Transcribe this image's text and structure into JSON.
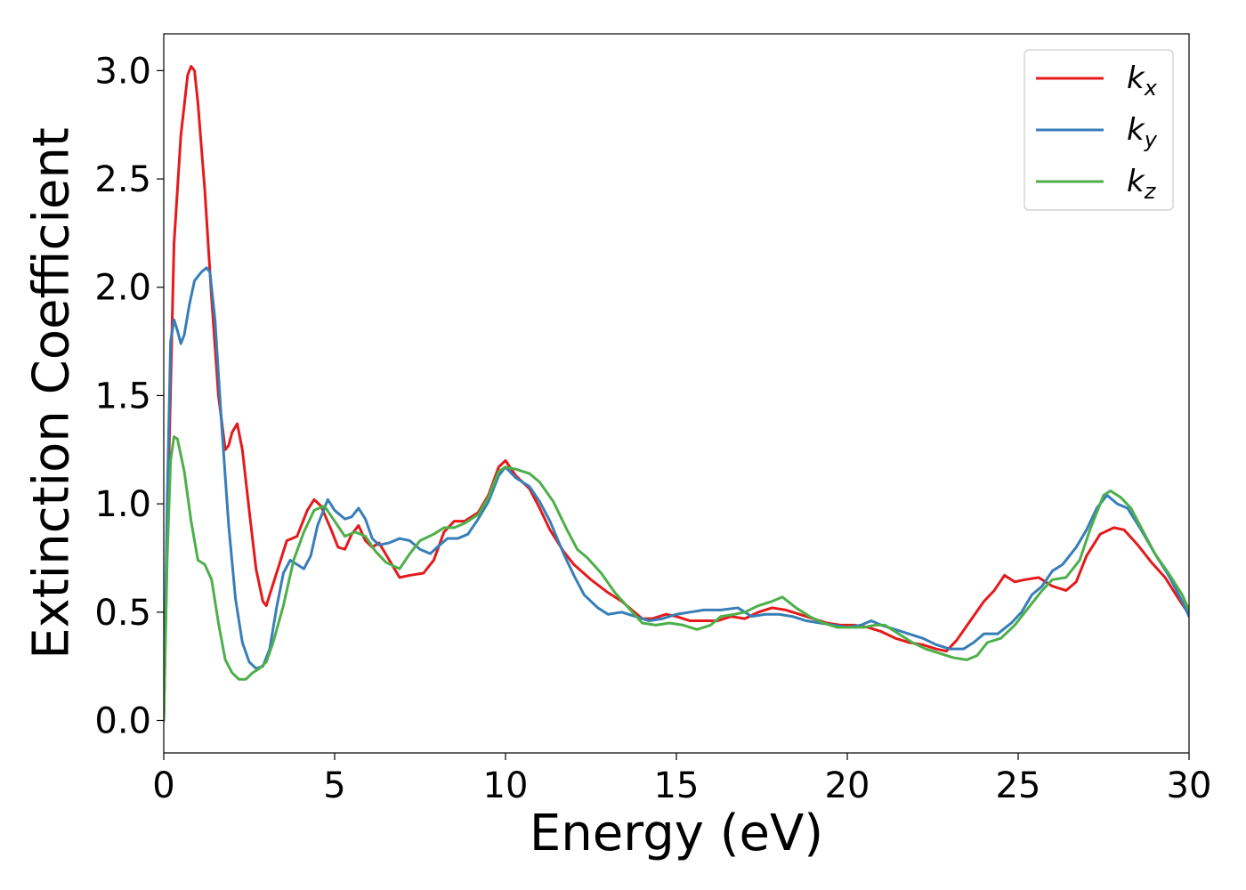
{
  "chart_data": {
    "type": "line",
    "title": "",
    "xlabel": "Energy (eV)",
    "ylabel": "Extinction Coefficient",
    "xlim": [
      0,
      30
    ],
    "ylim": [
      -0.15,
      3.17
    ],
    "xticks": [
      "0",
      "5",
      "10",
      "15",
      "20",
      "25",
      "30"
    ],
    "yticks": [
      "0.0",
      "0.5",
      "1.0",
      "1.5",
      "2.0",
      "2.5",
      "3.0"
    ],
    "grid": false,
    "legend_position": "top-right",
    "series": [
      {
        "name": "k",
        "subscript": "x",
        "color": "#e41a1c",
        "points": [
          [
            0,
            0
          ],
          [
            0.15,
            1.2
          ],
          [
            0.3,
            2.2
          ],
          [
            0.5,
            2.7
          ],
          [
            0.7,
            2.98
          ],
          [
            0.8,
            3.02
          ],
          [
            0.9,
            3.0
          ],
          [
            1.0,
            2.85
          ],
          [
            1.2,
            2.45
          ],
          [
            1.4,
            1.95
          ],
          [
            1.6,
            1.5
          ],
          [
            1.8,
            1.25
          ],
          [
            1.9,
            1.27
          ],
          [
            2.0,
            1.33
          ],
          [
            2.15,
            1.37
          ],
          [
            2.3,
            1.25
          ],
          [
            2.5,
            0.97
          ],
          [
            2.7,
            0.7
          ],
          [
            2.9,
            0.55
          ],
          [
            3.0,
            0.53
          ],
          [
            3.3,
            0.68
          ],
          [
            3.6,
            0.83
          ],
          [
            3.9,
            0.85
          ],
          [
            4.2,
            0.97
          ],
          [
            4.4,
            1.02
          ],
          [
            4.6,
            0.99
          ],
          [
            4.9,
            0.88
          ],
          [
            5.1,
            0.8
          ],
          [
            5.3,
            0.79
          ],
          [
            5.5,
            0.86
          ],
          [
            5.7,
            0.9
          ],
          [
            5.9,
            0.83
          ],
          [
            6.1,
            0.8
          ],
          [
            6.3,
            0.82
          ],
          [
            6.6,
            0.74
          ],
          [
            6.9,
            0.66
          ],
          [
            7.2,
            0.67
          ],
          [
            7.6,
            0.68
          ],
          [
            7.9,
            0.74
          ],
          [
            8.2,
            0.87
          ],
          [
            8.5,
            0.92
          ],
          [
            8.8,
            0.92
          ],
          [
            9.2,
            0.96
          ],
          [
            9.5,
            1.04
          ],
          [
            9.8,
            1.17
          ],
          [
            10.0,
            1.2
          ],
          [
            10.3,
            1.13
          ],
          [
            10.7,
            1.07
          ],
          [
            11.0,
            0.98
          ],
          [
            11.3,
            0.88
          ],
          [
            11.7,
            0.78
          ],
          [
            12.0,
            0.72
          ],
          [
            12.5,
            0.65
          ],
          [
            13.0,
            0.59
          ],
          [
            13.4,
            0.55
          ],
          [
            13.7,
            0.51
          ],
          [
            14.0,
            0.47
          ],
          [
            14.3,
            0.47
          ],
          [
            14.7,
            0.49
          ],
          [
            15.0,
            0.48
          ],
          [
            15.4,
            0.46
          ],
          [
            15.8,
            0.46
          ],
          [
            16.2,
            0.46
          ],
          [
            16.6,
            0.48
          ],
          [
            17.0,
            0.47
          ],
          [
            17.4,
            0.5
          ],
          [
            17.8,
            0.52
          ],
          [
            18.2,
            0.51
          ],
          [
            18.6,
            0.49
          ],
          [
            19.0,
            0.47
          ],
          [
            19.4,
            0.45
          ],
          [
            19.8,
            0.44
          ],
          [
            20.2,
            0.44
          ],
          [
            20.6,
            0.43
          ],
          [
            21.0,
            0.41
          ],
          [
            21.4,
            0.38
          ],
          [
            21.8,
            0.36
          ],
          [
            22.2,
            0.35
          ],
          [
            22.6,
            0.33
          ],
          [
            22.9,
            0.32
          ],
          [
            23.2,
            0.37
          ],
          [
            23.6,
            0.46
          ],
          [
            24.0,
            0.55
          ],
          [
            24.3,
            0.6
          ],
          [
            24.6,
            0.67
          ],
          [
            24.9,
            0.64
          ],
          [
            25.2,
            0.65
          ],
          [
            25.6,
            0.66
          ],
          [
            26.0,
            0.62
          ],
          [
            26.4,
            0.6
          ],
          [
            26.7,
            0.64
          ],
          [
            27.0,
            0.76
          ],
          [
            27.4,
            0.86
          ],
          [
            27.8,
            0.89
          ],
          [
            28.1,
            0.88
          ],
          [
            28.5,
            0.81
          ],
          [
            28.9,
            0.73
          ],
          [
            29.3,
            0.66
          ],
          [
            29.7,
            0.56
          ],
          [
            30.0,
            0.49
          ]
        ]
      },
      {
        "name": "k",
        "subscript": "y",
        "color": "#377eb8",
        "points": [
          [
            0,
            0
          ],
          [
            0.1,
            1.0
          ],
          [
            0.2,
            1.75
          ],
          [
            0.3,
            1.85
          ],
          [
            0.4,
            1.8
          ],
          [
            0.5,
            1.74
          ],
          [
            0.6,
            1.78
          ],
          [
            0.75,
            1.92
          ],
          [
            0.9,
            2.03
          ],
          [
            1.1,
            2.07
          ],
          [
            1.25,
            2.09
          ],
          [
            1.35,
            2.07
          ],
          [
            1.5,
            1.85
          ],
          [
            1.7,
            1.35
          ],
          [
            1.9,
            0.9
          ],
          [
            2.1,
            0.56
          ],
          [
            2.3,
            0.36
          ],
          [
            2.5,
            0.27
          ],
          [
            2.7,
            0.24
          ],
          [
            2.9,
            0.25
          ],
          [
            3.1,
            0.33
          ],
          [
            3.3,
            0.52
          ],
          [
            3.5,
            0.68
          ],
          [
            3.7,
            0.74
          ],
          [
            3.9,
            0.72
          ],
          [
            4.1,
            0.7
          ],
          [
            4.3,
            0.76
          ],
          [
            4.5,
            0.9
          ],
          [
            4.8,
            1.02
          ],
          [
            5.0,
            0.97
          ],
          [
            5.3,
            0.93
          ],
          [
            5.5,
            0.94
          ],
          [
            5.7,
            0.98
          ],
          [
            5.9,
            0.93
          ],
          [
            6.1,
            0.84
          ],
          [
            6.3,
            0.81
          ],
          [
            6.6,
            0.82
          ],
          [
            6.9,
            0.84
          ],
          [
            7.2,
            0.83
          ],
          [
            7.5,
            0.79
          ],
          [
            7.8,
            0.77
          ],
          [
            8.0,
            0.8
          ],
          [
            8.3,
            0.84
          ],
          [
            8.6,
            0.84
          ],
          [
            8.9,
            0.86
          ],
          [
            9.2,
            0.93
          ],
          [
            9.5,
            1.01
          ],
          [
            9.8,
            1.13
          ],
          [
            10.0,
            1.17
          ],
          [
            10.3,
            1.12
          ],
          [
            10.7,
            1.08
          ],
          [
            11.0,
            1.01
          ],
          [
            11.3,
            0.92
          ],
          [
            11.7,
            0.77
          ],
          [
            12.0,
            0.67
          ],
          [
            12.3,
            0.58
          ],
          [
            12.7,
            0.52
          ],
          [
            13.0,
            0.49
          ],
          [
            13.4,
            0.5
          ],
          [
            13.8,
            0.48
          ],
          [
            14.2,
            0.46
          ],
          [
            14.6,
            0.47
          ],
          [
            15.0,
            0.49
          ],
          [
            15.4,
            0.5
          ],
          [
            15.8,
            0.51
          ],
          [
            16.3,
            0.51
          ],
          [
            16.8,
            0.52
          ],
          [
            17.2,
            0.48
          ],
          [
            17.6,
            0.49
          ],
          [
            18.0,
            0.49
          ],
          [
            18.4,
            0.48
          ],
          [
            18.8,
            0.46
          ],
          [
            19.2,
            0.45
          ],
          [
            19.6,
            0.44
          ],
          [
            20.0,
            0.43
          ],
          [
            20.4,
            0.44
          ],
          [
            20.7,
            0.46
          ],
          [
            21.0,
            0.44
          ],
          [
            21.4,
            0.42
          ],
          [
            21.8,
            0.4
          ],
          [
            22.2,
            0.38
          ],
          [
            22.6,
            0.35
          ],
          [
            23.0,
            0.33
          ],
          [
            23.4,
            0.33
          ],
          [
            23.7,
            0.36
          ],
          [
            24.0,
            0.4
          ],
          [
            24.4,
            0.4
          ],
          [
            24.8,
            0.45
          ],
          [
            25.1,
            0.5
          ],
          [
            25.4,
            0.58
          ],
          [
            25.7,
            0.62
          ],
          [
            26.0,
            0.69
          ],
          [
            26.3,
            0.72
          ],
          [
            26.7,
            0.8
          ],
          [
            27.0,
            0.88
          ],
          [
            27.3,
            0.98
          ],
          [
            27.6,
            1.04
          ],
          [
            27.9,
            1.0
          ],
          [
            28.2,
            0.98
          ],
          [
            28.6,
            0.88
          ],
          [
            29.0,
            0.77
          ],
          [
            29.4,
            0.67
          ],
          [
            29.8,
            0.55
          ],
          [
            30.0,
            0.48
          ]
        ]
      },
      {
        "name": "k",
        "subscript": "z",
        "color": "#4daf4a",
        "points": [
          [
            0,
            0
          ],
          [
            0.1,
            0.75
          ],
          [
            0.2,
            1.2
          ],
          [
            0.3,
            1.31
          ],
          [
            0.4,
            1.3
          ],
          [
            0.6,
            1.15
          ],
          [
            0.8,
            0.92
          ],
          [
            1.0,
            0.74
          ],
          [
            1.2,
            0.72
          ],
          [
            1.4,
            0.65
          ],
          [
            1.6,
            0.45
          ],
          [
            1.8,
            0.28
          ],
          [
            2.0,
            0.22
          ],
          [
            2.2,
            0.19
          ],
          [
            2.4,
            0.19
          ],
          [
            2.6,
            0.22
          ],
          [
            2.8,
            0.24
          ],
          [
            3.0,
            0.27
          ],
          [
            3.2,
            0.36
          ],
          [
            3.5,
            0.53
          ],
          [
            3.8,
            0.74
          ],
          [
            4.1,
            0.87
          ],
          [
            4.4,
            0.97
          ],
          [
            4.7,
            0.99
          ],
          [
            5.0,
            0.92
          ],
          [
            5.3,
            0.85
          ],
          [
            5.6,
            0.87
          ],
          [
            5.9,
            0.85
          ],
          [
            6.2,
            0.78
          ],
          [
            6.5,
            0.73
          ],
          [
            6.9,
            0.7
          ],
          [
            7.2,
            0.77
          ],
          [
            7.5,
            0.83
          ],
          [
            7.9,
            0.86
          ],
          [
            8.2,
            0.89
          ],
          [
            8.5,
            0.89
          ],
          [
            8.8,
            0.91
          ],
          [
            9.2,
            0.95
          ],
          [
            9.5,
            1.03
          ],
          [
            9.8,
            1.15
          ],
          [
            10.0,
            1.17
          ],
          [
            10.3,
            1.16
          ],
          [
            10.7,
            1.14
          ],
          [
            11.0,
            1.1
          ],
          [
            11.4,
            1.01
          ],
          [
            11.8,
            0.88
          ],
          [
            12.1,
            0.79
          ],
          [
            12.4,
            0.75
          ],
          [
            12.8,
            0.68
          ],
          [
            13.2,
            0.59
          ],
          [
            13.6,
            0.52
          ],
          [
            14.0,
            0.45
          ],
          [
            14.4,
            0.44
          ],
          [
            14.8,
            0.45
          ],
          [
            15.2,
            0.44
          ],
          [
            15.6,
            0.42
          ],
          [
            16.0,
            0.44
          ],
          [
            16.3,
            0.48
          ],
          [
            16.7,
            0.49
          ],
          [
            17.0,
            0.5
          ],
          [
            17.4,
            0.53
          ],
          [
            17.8,
            0.55
          ],
          [
            18.1,
            0.57
          ],
          [
            18.5,
            0.52
          ],
          [
            18.9,
            0.48
          ],
          [
            19.3,
            0.45
          ],
          [
            19.7,
            0.43
          ],
          [
            20.1,
            0.43
          ],
          [
            20.5,
            0.43
          ],
          [
            20.8,
            0.44
          ],
          [
            21.1,
            0.44
          ],
          [
            21.5,
            0.4
          ],
          [
            21.9,
            0.36
          ],
          [
            22.3,
            0.33
          ],
          [
            22.7,
            0.31
          ],
          [
            23.1,
            0.29
          ],
          [
            23.5,
            0.28
          ],
          [
            23.8,
            0.3
          ],
          [
            24.1,
            0.36
          ],
          [
            24.5,
            0.38
          ],
          [
            24.9,
            0.44
          ],
          [
            25.3,
            0.52
          ],
          [
            25.7,
            0.6
          ],
          [
            26.0,
            0.65
          ],
          [
            26.4,
            0.66
          ],
          [
            26.8,
            0.74
          ],
          [
            27.1,
            0.88
          ],
          [
            27.5,
            1.04
          ],
          [
            27.7,
            1.06
          ],
          [
            28.0,
            1.03
          ],
          [
            28.3,
            0.98
          ],
          [
            28.7,
            0.86
          ],
          [
            29.0,
            0.77
          ],
          [
            29.4,
            0.68
          ],
          [
            29.8,
            0.58
          ],
          [
            30.0,
            0.51
          ]
        ]
      }
    ]
  }
}
